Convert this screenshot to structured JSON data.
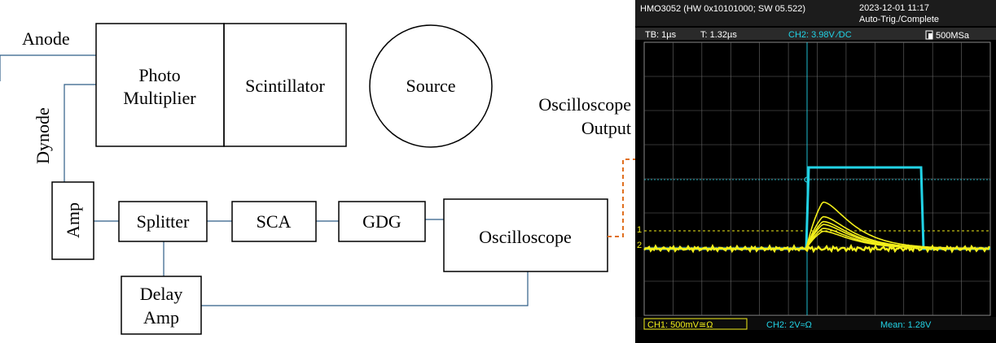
{
  "diagram": {
    "labels": {
      "anode": "Anode",
      "dynode": "Dynode",
      "oscilloscope_output_line1": "Oscilloscope",
      "oscilloscope_output_line2": "Output"
    },
    "blocks": {
      "photomultiplier_line1": "Photo",
      "photomultiplier_line2": "Multiplier",
      "scintillator": "Scintillator",
      "source": "Source",
      "amp": "Amp",
      "splitter": "Splitter",
      "sca": "SCA",
      "gdg": "GDG",
      "oscilloscope": "Oscilloscope",
      "delay_amp_line1": "Delay",
      "delay_amp_line2": "Amp"
    },
    "colors": {
      "line": "#2e5d87",
      "box_border": "#000000",
      "output_link": "#e07020"
    }
  },
  "scope": {
    "header": {
      "model": "HMO3052 (HW 0x10101000; SW 05.522)",
      "datetime": "2023-12-01 11:17",
      "status": "Auto-Trig./Complete"
    },
    "settings_bar": {
      "timebase": "TB: 1µs",
      "trigger_time": "T: 1.32µs",
      "ch2_trigger": "CH2: 3.98V ⁄DC",
      "sample_rate": "500MSa"
    },
    "footer": {
      "ch1": "CH1: 500mV≅Ω",
      "ch2": "CH2: 2V≈Ω",
      "mean": "Mean: 1.28V"
    },
    "colors": {
      "background": "#000000",
      "ch1": "#f2ee1a",
      "ch2": "#22d3e6",
      "grid": "#6a6a6a",
      "text": "#ffffff"
    }
  }
}
